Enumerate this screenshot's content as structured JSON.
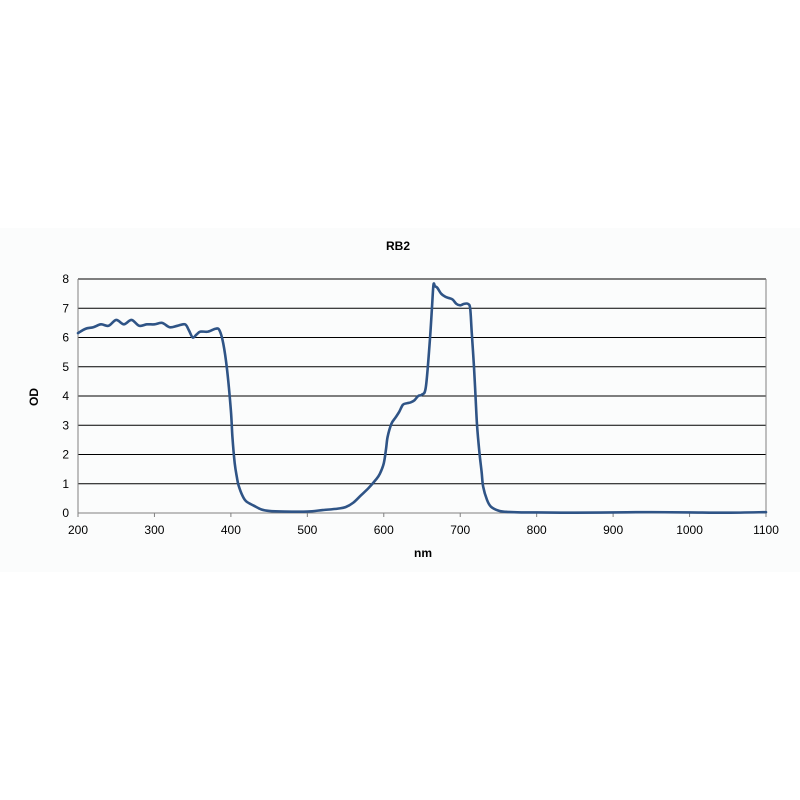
{
  "chart_data": {
    "type": "line",
    "title": "RB2",
    "xlabel": "nm",
    "ylabel": "OD",
    "xlim": [
      200,
      1100
    ],
    "ylim": [
      0,
      8
    ],
    "x_ticks": [
      200,
      300,
      400,
      500,
      600,
      700,
      800,
      900,
      1000,
      1100
    ],
    "y_ticks": [
      0,
      1,
      2,
      3,
      4,
      5,
      6,
      7,
      8
    ],
    "grid": "horizontal",
    "legend": "none",
    "colors": {
      "line": "#2f5486",
      "grid": "#000000",
      "axis": "#808080"
    },
    "series": [
      {
        "x": [
          200,
          210,
          220,
          230,
          240,
          250,
          260,
          270,
          280,
          290,
          300,
          310,
          320,
          330,
          340,
          345,
          350,
          355,
          360,
          370,
          380,
          385,
          390,
          395,
          400,
          402,
          405,
          408,
          410,
          415,
          420,
          430,
          440,
          450,
          470,
          500,
          520,
          540,
          550,
          560,
          570,
          580,
          590,
          595,
          600,
          603,
          605,
          610,
          615,
          620,
          625,
          630,
          635,
          640,
          645,
          650,
          655,
          660,
          663,
          665,
          667,
          670,
          675,
          680,
          685,
          690,
          695,
          700,
          705,
          710,
          713,
          715,
          718,
          720,
          722,
          725,
          728,
          730,
          735,
          740,
          750,
          760,
          780,
          800,
          850,
          900,
          950,
          1000,
          1050,
          1100
        ],
        "y": [
          6.15,
          6.3,
          6.35,
          6.45,
          6.4,
          6.6,
          6.45,
          6.6,
          6.4,
          6.45,
          6.45,
          6.5,
          6.35,
          6.4,
          6.45,
          6.25,
          6.0,
          6.1,
          6.2,
          6.2,
          6.3,
          6.25,
          5.8,
          4.9,
          3.5,
          2.6,
          1.7,
          1.2,
          0.95,
          0.6,
          0.4,
          0.25,
          0.12,
          0.07,
          0.05,
          0.05,
          0.1,
          0.15,
          0.2,
          0.35,
          0.6,
          0.85,
          1.15,
          1.35,
          1.7,
          2.2,
          2.6,
          3.05,
          3.25,
          3.45,
          3.7,
          3.75,
          3.78,
          3.85,
          4.0,
          4.05,
          4.3,
          5.8,
          7.0,
          7.8,
          7.75,
          7.7,
          7.5,
          7.4,
          7.35,
          7.3,
          7.15,
          7.1,
          7.15,
          7.15,
          7.0,
          6.2,
          5.0,
          4.0,
          3.0,
          2.1,
          1.4,
          0.9,
          0.45,
          0.22,
          0.08,
          0.04,
          0.02,
          0.02,
          0.01,
          0.02,
          0.03,
          0.02,
          0.01,
          0.03
        ]
      }
    ]
  }
}
